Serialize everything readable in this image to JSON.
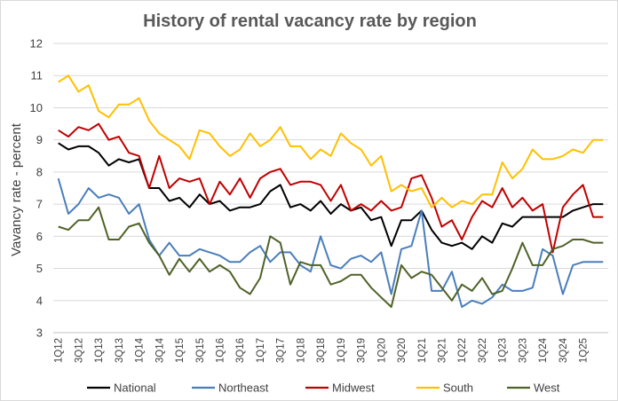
{
  "chart_data": {
    "type": "line",
    "title": "History  of rental vacancy rate by region",
    "ylabel": "Vavancy rate - percent",
    "xlabel": "",
    "ylim": [
      3,
      12
    ],
    "yticks": [
      3,
      4,
      5,
      6,
      7,
      8,
      9,
      10,
      11,
      12
    ],
    "grid": "horizontal",
    "legend_position": "bottom",
    "x_tick_labels": [
      "1Q12",
      "3Q12",
      "1Q13",
      "3Q13",
      "1Q14",
      "3Q14",
      "1Q15",
      "3Q15",
      "1Q16",
      "3Q16",
      "1Q17",
      "3Q17",
      "1Q18",
      "3Q18",
      "1Q19",
      "3Q19",
      "1Q20",
      "3Q20",
      "1Q21",
      "3Q21",
      "1Q22",
      "3Q22",
      "1Q23",
      "3Q23",
      "1Q24",
      "3Q24",
      "1Q25"
    ],
    "categories": [
      "1Q12",
      "2Q12",
      "3Q12",
      "4Q12",
      "1Q13",
      "2Q13",
      "3Q13",
      "4Q13",
      "1Q14",
      "2Q14",
      "3Q14",
      "4Q14",
      "1Q15",
      "2Q15",
      "3Q15",
      "4Q15",
      "1Q16",
      "2Q16",
      "3Q16",
      "4Q16",
      "1Q17",
      "2Q17",
      "3Q17",
      "4Q17",
      "1Q18",
      "2Q18",
      "3Q18",
      "4Q18",
      "1Q19",
      "2Q19",
      "3Q19",
      "4Q19",
      "1Q20",
      "2Q20",
      "3Q20",
      "4Q20",
      "1Q21",
      "2Q21",
      "3Q21",
      "4Q21",
      "1Q22",
      "2Q22",
      "3Q22",
      "4Q22",
      "1Q23",
      "2Q23",
      "3Q23",
      "4Q23",
      "1Q24",
      "2Q24",
      "3Q24",
      "4Q24",
      "1Q25",
      "2Q25",
      "3Q25"
    ],
    "series": [
      {
        "name": "National",
        "color": "#000000",
        "values": [
          8.9,
          8.7,
          8.8,
          8.8,
          8.6,
          8.2,
          8.4,
          8.3,
          8.4,
          7.5,
          7.5,
          7.1,
          7.2,
          6.9,
          7.3,
          7.0,
          7.1,
          6.8,
          6.9,
          6.9,
          7.0,
          7.4,
          7.6,
          6.9,
          7.0,
          6.8,
          7.1,
          6.7,
          7.0,
          6.8,
          6.9,
          6.5,
          6.6,
          5.7,
          6.5,
          6.5,
          6.8,
          6.2,
          5.8,
          5.7,
          5.8,
          5.6,
          6.0,
          5.8,
          6.4,
          6.3,
          6.6,
          6.6,
          6.6,
          6.6,
          6.6,
          6.8,
          6.9,
          7.0,
          7.0
        ]
      },
      {
        "name": "Northeast",
        "color": "#4a7ebb",
        "values": [
          7.8,
          6.7,
          7.0,
          7.5,
          7.2,
          7.3,
          7.2,
          6.7,
          7.0,
          5.9,
          5.4,
          5.8,
          5.4,
          5.4,
          5.6,
          5.5,
          5.4,
          5.2,
          5.2,
          5.5,
          5.7,
          5.2,
          5.5,
          5.5,
          5.1,
          4.9,
          6.0,
          5.1,
          5.0,
          5.3,
          5.4,
          5.2,
          5.5,
          4.2,
          5.6,
          5.7,
          6.8,
          4.3,
          4.3,
          4.9,
          3.8,
          4.0,
          3.9,
          4.1,
          4.5,
          4.3,
          4.3,
          4.4,
          5.6,
          5.4,
          4.2,
          5.1,
          5.2,
          5.2,
          5.2
        ]
      },
      {
        "name": "Midwest",
        "color": "#c00000",
        "values": [
          9.3,
          9.1,
          9.4,
          9.3,
          9.5,
          9.0,
          9.1,
          8.6,
          8.5,
          7.5,
          8.5,
          7.5,
          7.8,
          7.7,
          7.8,
          7.0,
          7.7,
          7.3,
          7.8,
          7.2,
          7.8,
          8.0,
          8.1,
          7.6,
          7.7,
          7.7,
          7.6,
          7.1,
          7.6,
          6.8,
          7.0,
          6.8,
          7.1,
          6.8,
          6.9,
          7.8,
          7.9,
          7.2,
          6.3,
          6.5,
          5.9,
          6.6,
          7.1,
          6.9,
          7.5,
          6.9,
          7.2,
          6.8,
          7.0,
          5.5,
          6.9,
          7.3,
          7.6,
          6.6,
          6.6
        ]
      },
      {
        "name": "South",
        "color": "#ffc000",
        "values": [
          10.8,
          11.0,
          10.5,
          10.7,
          9.9,
          9.7,
          10.1,
          10.1,
          10.3,
          9.6,
          9.2,
          9.0,
          8.8,
          8.4,
          9.3,
          9.2,
          8.8,
          8.5,
          8.7,
          9.2,
          8.8,
          9.0,
          9.4,
          8.8,
          8.8,
          8.4,
          8.7,
          8.5,
          9.2,
          8.9,
          8.7,
          8.2,
          8.5,
          7.4,
          7.6,
          7.4,
          7.5,
          6.9,
          7.2,
          6.9,
          7.1,
          7.0,
          7.3,
          7.3,
          8.3,
          7.8,
          8.1,
          8.7,
          8.4,
          8.4,
          8.5,
          8.7,
          8.6,
          9.0,
          9.0
        ]
      },
      {
        "name": "West",
        "color": "#4f6228",
        "values": [
          6.3,
          6.2,
          6.5,
          6.5,
          6.9,
          5.9,
          5.9,
          6.3,
          6.4,
          5.8,
          5.4,
          4.8,
          5.3,
          4.9,
          5.3,
          4.9,
          5.1,
          4.9,
          4.4,
          4.2,
          4.7,
          6.0,
          5.8,
          4.5,
          5.2,
          5.1,
          5.1,
          4.5,
          4.6,
          4.8,
          4.8,
          4.4,
          4.1,
          3.8,
          5.1,
          4.7,
          4.9,
          4.8,
          4.4,
          4.0,
          4.5,
          4.3,
          4.7,
          4.2,
          4.3,
          5.0,
          5.8,
          5.1,
          5.1,
          5.6,
          5.7,
          5.9,
          5.9,
          5.8,
          5.8
        ]
      }
    ]
  }
}
